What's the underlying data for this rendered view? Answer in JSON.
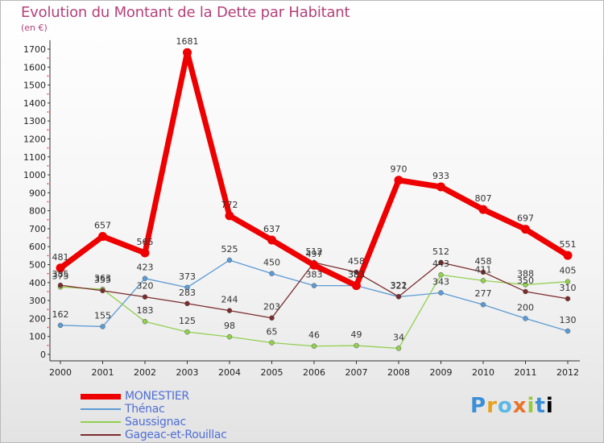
{
  "chart_data": {
    "type": "line",
    "title": "Evolution du Montant de la Dette par Habitant",
    "subtitle": "(en €)",
    "x": [
      "2000",
      "2001",
      "2002",
      "2003",
      "2004",
      "2005",
      "2006",
      "2007",
      "2008",
      "2009",
      "2010",
      "2011",
      "2012"
    ],
    "y_ticks": [
      0,
      100,
      200,
      300,
      400,
      500,
      600,
      700,
      800,
      900,
      1000,
      1100,
      1200,
      1300,
      1400,
      1500,
      1600,
      1700
    ],
    "ylim": [
      0,
      1750
    ],
    "grid": false,
    "legend": "bottom-left",
    "series": [
      {
        "name": "MONESTIER",
        "color": "#ee0000",
        "values": [
          481,
          657,
          565,
          1681,
          772,
          637,
          497,
          383,
          970,
          933,
          807,
          697,
          551
        ]
      },
      {
        "name": "Thénac",
        "color": "#5b9bd5",
        "values": [
          162,
          155,
          423,
          373,
          525,
          450,
          383,
          383,
          321,
          343,
          277,
          200,
          130
        ]
      },
      {
        "name": "Saussignac",
        "color": "#92d050",
        "values": [
          375,
          363,
          183,
          125,
          98,
          65,
          46,
          49,
          34,
          443,
          411,
          388,
          405
        ]
      },
      {
        "name": "Gageac-et-Rouillac",
        "color": "#7b2c2c",
        "values": [
          385,
          355,
          320,
          283,
          244,
          203,
          512,
          458,
          322,
          512,
          458,
          350,
          310
        ]
      }
    ]
  },
  "logo": {
    "letters": [
      "P",
      "r",
      "o",
      "x",
      "i",
      "t",
      "i"
    ]
  }
}
